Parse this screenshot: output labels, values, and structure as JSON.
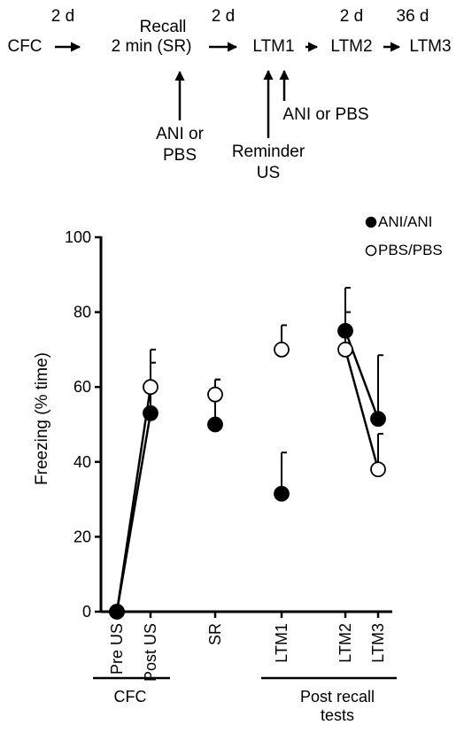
{
  "protocol": {
    "steps": [
      "CFC",
      "2 min (SR)",
      "LTM1",
      "LTM2",
      "LTM3"
    ],
    "recall_label": "Recall",
    "intervals": [
      "2 d",
      "2 d",
      "2 d",
      "36 d"
    ],
    "injection1_lines": [
      "ANI or",
      "PBS"
    ],
    "reminder_lines": [
      "Reminder",
      "US"
    ],
    "injection2_label": "ANI or PBS"
  },
  "chart_data": {
    "type": "scatter",
    "title": "",
    "xlabel": "",
    "ylabel": "Freezing (% time)",
    "ylim": [
      0,
      100
    ],
    "yticks": [
      0,
      20,
      40,
      60,
      80,
      100
    ],
    "categories": [
      "Pre US",
      "Post US",
      "SR",
      "LTM1",
      "LTM2",
      "LTM3"
    ],
    "groups": [
      {
        "label": "CFC",
        "categories": [
          "Pre US",
          "Post US"
        ]
      },
      {
        "label": "Post recall tests",
        "categories": [
          "LTM1",
          "LTM2",
          "LTM3"
        ]
      }
    ],
    "legend_position": "top-right",
    "series": [
      {
        "name": "ANI/ANI",
        "marker": "filled",
        "values": [
          0,
          53,
          50,
          31.5,
          75,
          51.5
        ],
        "errors": [
          0,
          13.5,
          12,
          11,
          11.5,
          17
        ]
      },
      {
        "name": "PBS/PBS",
        "marker": "open",
        "values": [
          0,
          60,
          58,
          70,
          70,
          38
        ],
        "errors": [
          0,
          10,
          4,
          6.5,
          10,
          9.5
        ]
      }
    ],
    "connected_segments": [
      [
        0,
        1
      ],
      [
        4,
        5
      ]
    ]
  },
  "colors": {
    "ink": "#000000",
    "background": "#ffffff"
  }
}
